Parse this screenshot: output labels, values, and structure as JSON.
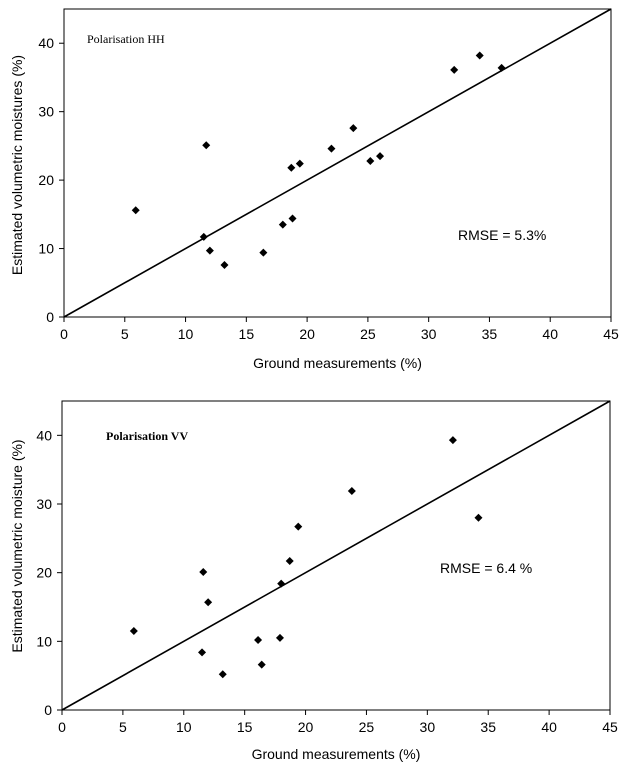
{
  "chart_data": [
    {
      "type": "scatter",
      "title": "",
      "panel_label": "Polarisation HH",
      "annotation": "RMSE = 5.3%",
      "xlabel": "Ground measurements (%)",
      "ylabel": "Estimated volumetric moistures (%)",
      "xlim": [
        0,
        45
      ],
      "ylim": [
        0,
        45
      ],
      "xticks": [
        0,
        5,
        10,
        15,
        20,
        25,
        30,
        35,
        40,
        45
      ],
      "yticks": [
        0,
        10,
        20,
        30,
        40
      ],
      "grid": false,
      "reference_line": {
        "x": [
          0,
          45
        ],
        "y": [
          0,
          45
        ]
      },
      "points": [
        {
          "x": 5.9,
          "y": 15.6
        },
        {
          "x": 11.5,
          "y": 11.7
        },
        {
          "x": 11.7,
          "y": 25.1
        },
        {
          "x": 12.0,
          "y": 9.7
        },
        {
          "x": 13.2,
          "y": 7.6
        },
        {
          "x": 16.4,
          "y": 9.4
        },
        {
          "x": 18.0,
          "y": 13.5
        },
        {
          "x": 18.7,
          "y": 21.8
        },
        {
          "x": 18.8,
          "y": 14.4
        },
        {
          "x": 19.4,
          "y": 22.4
        },
        {
          "x": 22.0,
          "y": 24.6
        },
        {
          "x": 23.8,
          "y": 27.6
        },
        {
          "x": 25.2,
          "y": 22.8
        },
        {
          "x": 26.0,
          "y": 23.5
        },
        {
          "x": 32.1,
          "y": 36.1
        },
        {
          "x": 34.2,
          "y": 38.2
        },
        {
          "x": 36.0,
          "y": 36.4
        }
      ]
    },
    {
      "type": "scatter",
      "title": "",
      "panel_label": "Polarisation VV",
      "annotation": "RMSE = 6.4 %",
      "xlabel": "Ground measurements (%)",
      "ylabel": "Estimated volumetric moisture (%)",
      "xlim": [
        0,
        45
      ],
      "ylim": [
        0,
        45
      ],
      "xticks": [
        0,
        5,
        10,
        15,
        20,
        25,
        30,
        35,
        40,
        45
      ],
      "yticks": [
        0,
        10,
        20,
        30,
        40
      ],
      "grid": false,
      "reference_line": {
        "x": [
          0,
          45
        ],
        "y": [
          0,
          45
        ]
      },
      "points": [
        {
          "x": 5.9,
          "y": 11.5
        },
        {
          "x": 11.5,
          "y": 8.4
        },
        {
          "x": 11.6,
          "y": 20.1
        },
        {
          "x": 12.0,
          "y": 15.7
        },
        {
          "x": 13.2,
          "y": 5.2
        },
        {
          "x": 16.1,
          "y": 10.2
        },
        {
          "x": 16.4,
          "y": 6.6
        },
        {
          "x": 17.9,
          "y": 10.5
        },
        {
          "x": 18.0,
          "y": 18.4
        },
        {
          "x": 18.7,
          "y": 21.7
        },
        {
          "x": 19.4,
          "y": 26.7
        },
        {
          "x": 23.8,
          "y": 31.9
        },
        {
          "x": 32.1,
          "y": 39.3
        },
        {
          "x": 34.2,
          "y": 28.0
        }
      ]
    }
  ]
}
